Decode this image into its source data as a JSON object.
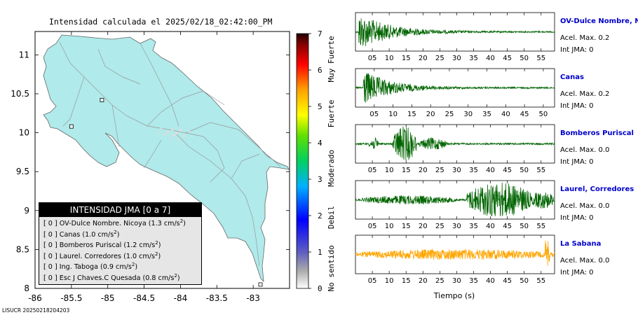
{
  "map": {
    "title": "Intensidad calculada el 2025/02/18_02:42:00_PM",
    "x_ticks": [
      "-86",
      "-85.5",
      "-85",
      "-84.5",
      "-84",
      "-83.5",
      "-83"
    ],
    "y_ticks": [
      "11",
      "10.5",
      "10",
      "9.5",
      "9",
      "8.5",
      "8"
    ],
    "xlim": [
      -86,
      -82.5
    ],
    "ylim": [
      8,
      11.3
    ],
    "land_color": "#b0eaea",
    "station_markers": [
      {
        "lon": -85.5,
        "lat": 10.08
      },
      {
        "lon": -85.08,
        "lat": 10.42
      },
      {
        "lon": -82.9,
        "lat": 8.05
      }
    ]
  },
  "colorbar": {
    "ticks": [
      "7",
      "6",
      "5",
      "4",
      "3",
      "2",
      "1",
      "0"
    ],
    "range": [
      0,
      7
    ],
    "labels": [
      {
        "text": "Muy Fuerte",
        "value": 6.3
      },
      {
        "text": "Fuerte",
        "value": 4.8
      },
      {
        "text": "Moderado",
        "value": 3.3
      },
      {
        "text": "Debil",
        "value": 1.95
      },
      {
        "text": "No sentido",
        "value": 0.55
      }
    ]
  },
  "legend": {
    "title": "INTENSIDAD JMA [0 a 7]",
    "items": [
      {
        "prefix": "[ 0 ]",
        "text": "OV-Dulce Nombre. Nicoya (1.3 cm/s",
        "sup": "2",
        "tail": ")"
      },
      {
        "prefix": "[ 0 ]",
        "text": "Canas (1.0 cm/s",
        "sup": "2",
        "tail": ")"
      },
      {
        "prefix": "[ 0 ]",
        "text": "Bomberos Puriscal (1.2 cm/s",
        "sup": "2",
        "tail": ")"
      },
      {
        "prefix": "[ 0 ]",
        "text": "Laurel. Corredores (1.0 cm/s",
        "sup": "2",
        "tail": ")"
      },
      {
        "prefix": "[ 0 ]",
        "text": "Ing. Taboga (0.9 cm/s",
        "sup": "2",
        "tail": ")"
      },
      {
        "prefix": "[ 0 ]",
        "text": "Esc J Chaves.C Quesada (0.8 cm/s",
        "sup": "2",
        "tail": ")"
      }
    ]
  },
  "footer": "LISUCR 20250218204203",
  "chart_data": [
    {
      "type": "line",
      "name": "OV-Dulce Nombre, Nicoya",
      "accel_label": "Acel. Max. 0.2",
      "jma_label": "Int JMA: 0",
      "color": "#006400",
      "x_ticks": [
        "05",
        "10",
        "15",
        "20",
        "25",
        "30",
        "35",
        "40",
        "45",
        "50",
        "55"
      ],
      "xlim": [
        0,
        59
      ],
      "envelope": {
        "onset_s": 1,
        "peak_amp": 1.0,
        "decay_s": 9,
        "bursts": []
      }
    },
    {
      "type": "line",
      "name": "Canas",
      "accel_label": "Acel. Max. 0.2",
      "jma_label": "Int JMA: 0",
      "color": "#006400",
      "x_ticks": [
        "05",
        "10",
        "15",
        "20",
        "25",
        "30",
        "35",
        "40",
        "45",
        "50"
      ],
      "xlim": [
        0,
        53
      ],
      "envelope": {
        "onset_s": 2,
        "peak_amp": 1.0,
        "decay_s": 7,
        "bursts": []
      }
    },
    {
      "type": "line",
      "name": "Bomberos Puriscal",
      "accel_label": "Acel. Max. 0.0",
      "jma_label": "Int JMA: 0",
      "color": "#006400",
      "x_ticks": [
        "05",
        "10",
        "15",
        "20",
        "25",
        "30",
        "35",
        "40",
        "45",
        "50",
        "55"
      ],
      "xlim": [
        0,
        59
      ],
      "envelope": {
        "onset_s": 2,
        "peak_amp": 0.35,
        "decay_s": 10,
        "bursts": [
          [
            4,
            7,
            0.35
          ],
          [
            11,
            18,
            1.0
          ],
          [
            19,
            27,
            0.35
          ]
        ]
      }
    },
    {
      "type": "line",
      "name": "Laurel, Corredores",
      "accel_label": "Acel. Max. 0.0",
      "jma_label": "Int JMA: 0",
      "color": "#006400",
      "x_ticks": [
        "05",
        "10",
        "15",
        "20",
        "25",
        "30",
        "35",
        "40",
        "45",
        "50",
        "55"
      ],
      "xlim": [
        0,
        59
      ],
      "envelope": {
        "onset_s": 2,
        "peak_amp": 0.25,
        "decay_s": 20,
        "bursts": [
          [
            2,
            30,
            0.25
          ],
          [
            33,
            52,
            1.0
          ],
          [
            52,
            59,
            0.5
          ]
        ]
      }
    },
    {
      "type": "line",
      "name": "La Sabana",
      "accel_label": "Acel. Max. 0.0",
      "jma_label": "Int JMA: 0",
      "color": "#ffa500",
      "x_ticks": [
        "05",
        "10",
        "15",
        "20",
        "25",
        "30",
        "35",
        "40",
        "45",
        "50",
        "55"
      ],
      "xlim": [
        0,
        59
      ],
      "xlabel": "Tiempo (s)",
      "envelope": {
        "onset_s": 0,
        "peak_amp": 0.3,
        "decay_s": 60,
        "bursts": [
          [
            0,
            59,
            0.3
          ],
          [
            56,
            57.5,
            1.0
          ]
        ]
      }
    }
  ]
}
